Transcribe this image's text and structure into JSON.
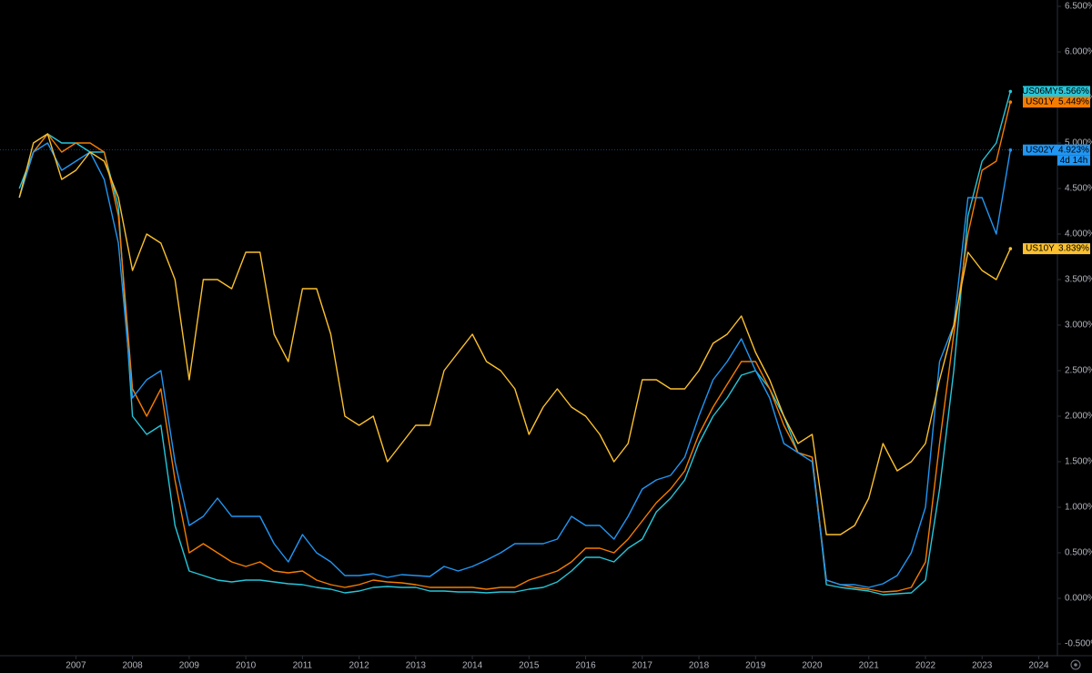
{
  "chart_data": {
    "type": "line",
    "x": [
      2006,
      2006.25,
      2006.5,
      2006.75,
      2007,
      2007.25,
      2007.5,
      2007.75,
      2008,
      2008.25,
      2008.5,
      2008.75,
      2009,
      2009.25,
      2009.5,
      2009.75,
      2010,
      2010.25,
      2010.5,
      2010.75,
      2011,
      2011.25,
      2011.5,
      2011.75,
      2012,
      2012.25,
      2012.5,
      2012.75,
      2013,
      2013.25,
      2013.5,
      2013.75,
      2014,
      2014.25,
      2014.5,
      2014.75,
      2015,
      2015.25,
      2015.5,
      2015.75,
      2016,
      2016.25,
      2016.5,
      2016.75,
      2017,
      2017.25,
      2017.5,
      2017.75,
      2018,
      2018.25,
      2018.5,
      2018.75,
      2019,
      2019.25,
      2019.5,
      2019.75,
      2020,
      2020.25,
      2020.5,
      2020.75,
      2021,
      2021.25,
      2021.5,
      2021.75,
      2022,
      2022.25,
      2022.5,
      2022.75,
      2023,
      2023.25,
      2023.5
    ],
    "xlim": [
      2005.66,
      2024.33
    ],
    "xticks": [
      2007,
      2008,
      2009,
      2010,
      2011,
      2012,
      2013,
      2014,
      2015,
      2016,
      2017,
      2018,
      2019,
      2020,
      2021,
      2022,
      2023,
      2024
    ],
    "ylim": [
      -0.63,
      6.57
    ],
    "yticks": [
      {
        "value": -0.5,
        "label": "-0.500%"
      },
      {
        "value": 0,
        "label": "0.000%"
      },
      {
        "value": 0.5,
        "label": "0.500%"
      },
      {
        "value": 1,
        "label": "1.000%"
      },
      {
        "value": 1.5,
        "label": "1.500%"
      },
      {
        "value": 2,
        "label": "2.000%"
      },
      {
        "value": 2.5,
        "label": "2.500%"
      },
      {
        "value": 3,
        "label": "3.000%"
      },
      {
        "value": 3.5,
        "label": "3.500%"
      },
      {
        "value": 4,
        "label": "4.000%"
      },
      {
        "value": 4.5,
        "label": "4.500%"
      },
      {
        "value": 5,
        "label": "5.000%"
      },
      {
        "value": 5.5,
        "label": "5.500%"
      },
      {
        "value": 6,
        "label": "6.000%"
      },
      {
        "value": 6.5,
        "label": "6.500%"
      }
    ],
    "series": [
      {
        "name": "US06MY",
        "color": "#26c6da",
        "last_value_label": "5.566%",
        "values": [
          4.5,
          4.9,
          5.1,
          5.0,
          5.0,
          4.9,
          4.9,
          4.3,
          2.0,
          1.8,
          1.9,
          0.8,
          0.3,
          0.25,
          0.2,
          0.18,
          0.2,
          0.2,
          0.18,
          0.16,
          0.15,
          0.12,
          0.1,
          0.06,
          0.08,
          0.12,
          0.13,
          0.12,
          0.12,
          0.08,
          0.08,
          0.07,
          0.07,
          0.06,
          0.07,
          0.07,
          0.1,
          0.12,
          0.18,
          0.3,
          0.45,
          0.45,
          0.4,
          0.55,
          0.65,
          0.95,
          1.1,
          1.3,
          1.7,
          2.0,
          2.2,
          2.45,
          2.5,
          2.3,
          2.0,
          1.6,
          1.55,
          0.15,
          0.12,
          0.1,
          0.08,
          0.04,
          0.05,
          0.06,
          0.2,
          1.2,
          2.5,
          4.2,
          4.8,
          5.0,
          5.566
        ]
      },
      {
        "name": "US01Y",
        "color": "#f57c00",
        "last_value_label": "5.449%",
        "values": [
          4.4,
          4.9,
          5.1,
          4.9,
          5.0,
          5.0,
          4.9,
          4.2,
          2.3,
          2.0,
          2.3,
          1.3,
          0.5,
          0.6,
          0.5,
          0.4,
          0.35,
          0.4,
          0.3,
          0.28,
          0.3,
          0.2,
          0.15,
          0.12,
          0.15,
          0.2,
          0.18,
          0.17,
          0.15,
          0.12,
          0.12,
          0.12,
          0.12,
          0.1,
          0.12,
          0.12,
          0.2,
          0.25,
          0.3,
          0.4,
          0.55,
          0.55,
          0.5,
          0.65,
          0.85,
          1.05,
          1.2,
          1.4,
          1.8,
          2.1,
          2.35,
          2.6,
          2.6,
          2.3,
          1.9,
          1.6,
          1.55,
          0.2,
          0.15,
          0.12,
          0.1,
          0.07,
          0.08,
          0.12,
          0.4,
          1.7,
          2.9,
          4.0,
          4.7,
          4.8,
          5.449
        ]
      },
      {
        "name": "US02Y",
        "color": "#2196f3",
        "last_value_label": "4.923%",
        "countdown": "4d 14h",
        "values": [
          4.4,
          4.9,
          5.0,
          4.7,
          4.8,
          4.9,
          4.6,
          3.9,
          2.2,
          2.4,
          2.5,
          1.5,
          0.8,
          0.9,
          1.1,
          0.9,
          0.9,
          0.9,
          0.6,
          0.4,
          0.7,
          0.5,
          0.4,
          0.25,
          0.25,
          0.27,
          0.23,
          0.26,
          0.25,
          0.24,
          0.35,
          0.3,
          0.35,
          0.42,
          0.5,
          0.6,
          0.6,
          0.6,
          0.65,
          0.9,
          0.8,
          0.8,
          0.65,
          0.9,
          1.2,
          1.3,
          1.35,
          1.55,
          2.0,
          2.4,
          2.6,
          2.85,
          2.5,
          2.2,
          1.7,
          1.6,
          1.5,
          0.2,
          0.15,
          0.15,
          0.12,
          0.16,
          0.25,
          0.5,
          1.0,
          2.6,
          3.0,
          4.4,
          4.4,
          4.0,
          4.923
        ]
      },
      {
        "name": "US10Y",
        "color": "#fbc02d",
        "last_value_label": "3.839%",
        "values": [
          4.4,
          5.0,
          5.1,
          4.6,
          4.7,
          4.9,
          4.8,
          4.4,
          3.6,
          4.0,
          3.9,
          3.5,
          2.4,
          3.5,
          3.5,
          3.4,
          3.8,
          3.8,
          2.9,
          2.6,
          3.4,
          3.4,
          2.9,
          2.0,
          1.9,
          2.0,
          1.5,
          1.7,
          1.9,
          1.9,
          2.5,
          2.7,
          2.9,
          2.6,
          2.5,
          2.3,
          1.8,
          2.1,
          2.3,
          2.1,
          2.0,
          1.8,
          1.5,
          1.7,
          2.4,
          2.4,
          2.3,
          2.3,
          2.5,
          2.8,
          2.9,
          3.1,
          2.7,
          2.4,
          2.0,
          1.7,
          1.8,
          0.7,
          0.7,
          0.8,
          1.1,
          1.7,
          1.4,
          1.5,
          1.7,
          2.4,
          3.0,
          3.8,
          3.6,
          3.5,
          3.839
        ]
      }
    ]
  }
}
